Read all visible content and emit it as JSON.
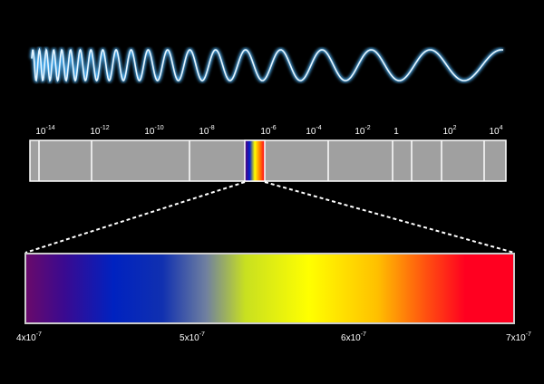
{
  "scale_labels": [
    {
      "base": "10",
      "exp": "-14"
    },
    {
      "base": "10",
      "exp": "-12"
    },
    {
      "base": "10",
      "exp": "-10"
    },
    {
      "base": "10",
      "exp": "-8"
    },
    {
      "base": "10",
      "exp": "-6"
    },
    {
      "base": "10",
      "exp": "-4"
    },
    {
      "base": "10",
      "exp": "-2"
    },
    {
      "base": "1"
    },
    {
      "base": "10",
      "exp": "2"
    },
    {
      "base": "10",
      "exp": "4"
    }
  ],
  "wavelength_labels": [
    {
      "base": "4x10",
      "exp": "-7"
    },
    {
      "base": "5x10",
      "exp": "-7"
    },
    {
      "base": "6x10",
      "exp": "-7"
    },
    {
      "base": "7x10",
      "exp": "-7"
    }
  ]
}
